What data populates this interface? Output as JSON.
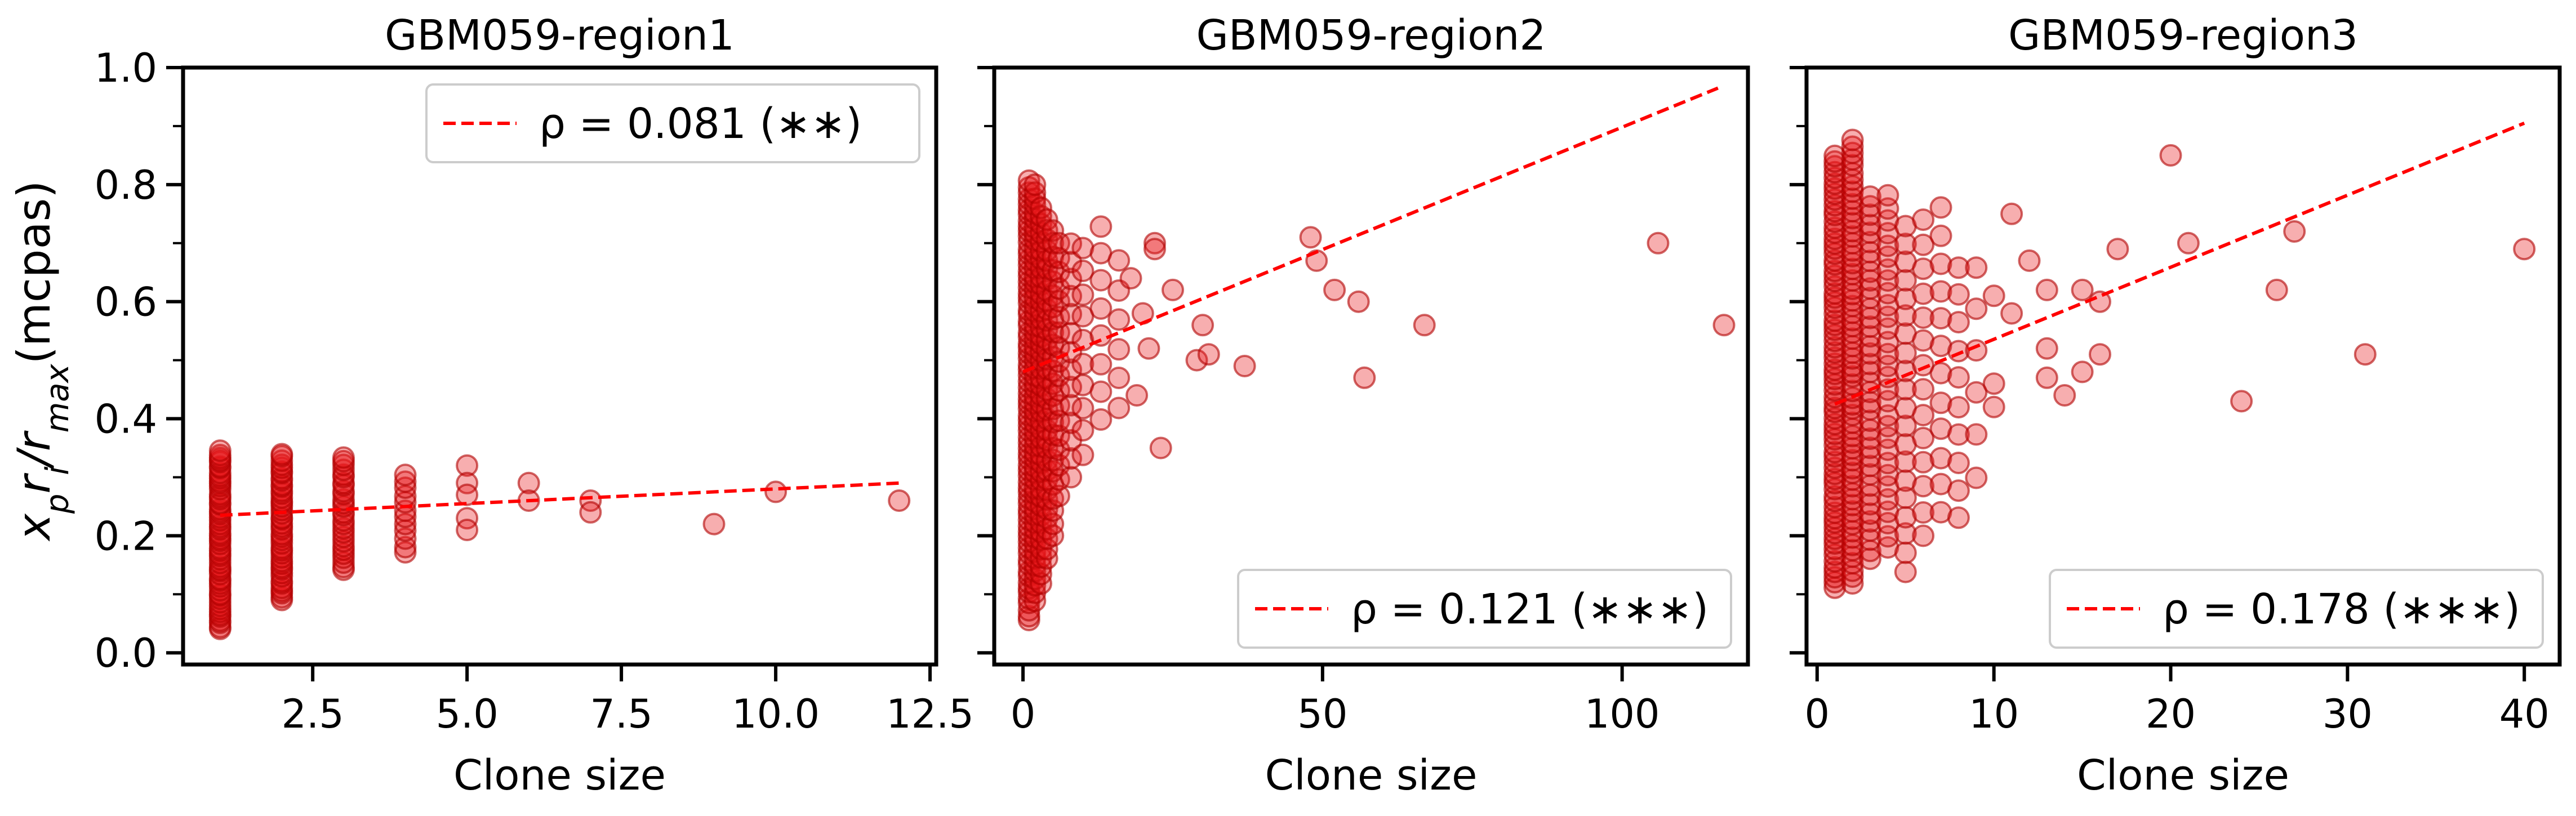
{
  "figure": {
    "ylabel_main": "x",
    "ylabel_sub_p": "p",
    "ylabel_r1": "r",
    "ylabel_sub_i": "i",
    "ylabel_slash": "/r",
    "ylabel_sub_max": "max",
    "ylabel_tail": "(mcpas)",
    "marker_color": "#e8161b",
    "trend_color": "#ff0000"
  },
  "chart_data": [
    {
      "type": "scatter",
      "title": "GBM059-region1",
      "xlabel": "Clone size",
      "ylabel": "x_p r_i / r_max (mcpas)",
      "xlim": [
        0.4,
        12.6
      ],
      "ylim": [
        -0.02,
        1.0
      ],
      "xticks": [
        2.5,
        5.0,
        7.5,
        10.0,
        12.5
      ],
      "xtick_labels": [
        "2.5",
        "5.0",
        "7.5",
        "10.0",
        "12.5"
      ],
      "yticks": [
        0.0,
        0.2,
        0.4,
        0.6,
        0.8,
        1.0
      ],
      "ytick_labels": [
        "0.0",
        "0.2",
        "0.4",
        "0.6",
        "0.8",
        "1.0"
      ],
      "legend": {
        "label": "ρ = 0.081 (∗∗)",
        "placement": "top-right"
      },
      "trend": {
        "x": [
          1,
          12
        ],
        "y": [
          0.235,
          0.29
        ]
      },
      "columns": [
        {
          "x": 1,
          "ymin": 0.04,
          "ymax": 0.345,
          "n": 60
        },
        {
          "x": 2,
          "ymin": 0.09,
          "ymax": 0.34,
          "n": 45
        },
        {
          "x": 3,
          "ymin": 0.14,
          "ymax": 0.335,
          "n": 28
        },
        {
          "x": 4,
          "ymin": 0.17,
          "ymax": 0.305,
          "n": 12
        }
      ],
      "points": [
        {
          "x": 5,
          "y": 0.32
        },
        {
          "x": 5,
          "y": 0.29
        },
        {
          "x": 5,
          "y": 0.27
        },
        {
          "x": 5,
          "y": 0.23
        },
        {
          "x": 5,
          "y": 0.21
        },
        {
          "x": 6,
          "y": 0.29
        },
        {
          "x": 6,
          "y": 0.26
        },
        {
          "x": 7,
          "y": 0.26
        },
        {
          "x": 7,
          "y": 0.24
        },
        {
          "x": 9,
          "y": 0.22
        },
        {
          "x": 10,
          "y": 0.275
        },
        {
          "x": 12,
          "y": 0.26
        }
      ]
    },
    {
      "type": "scatter",
      "title": "GBM059-region2",
      "xlabel": "Clone size",
      "ylabel": "",
      "xlim": [
        -4.8,
        121
      ],
      "ylim": [
        -0.02,
        1.0
      ],
      "xticks": [
        0,
        50,
        100
      ],
      "xtick_labels": [
        "0",
        "50",
        "100"
      ],
      "yticks": [
        0.0,
        0.2,
        0.4,
        0.6,
        0.8,
        1.0
      ],
      "ytick_labels": [],
      "legend": {
        "label": "ρ = 0.121 (∗∗∗)",
        "placement": "bottom-right"
      },
      "trend": {
        "x": [
          0,
          116
        ],
        "y": [
          0.48,
          0.965
        ]
      },
      "columns": [
        {
          "x": 1,
          "ymin": 0.055,
          "ymax": 0.805,
          "n": 80
        },
        {
          "x": 2,
          "ymin": 0.09,
          "ymax": 0.8,
          "n": 60
        },
        {
          "x": 3,
          "ymin": 0.12,
          "ymax": 0.76,
          "n": 45
        },
        {
          "x": 4,
          "ymin": 0.16,
          "ymax": 0.74,
          "n": 35
        },
        {
          "x": 5,
          "ymin": 0.2,
          "ymax": 0.72,
          "n": 25
        },
        {
          "x": 6,
          "ymin": 0.27,
          "ymax": 0.7,
          "n": 18
        },
        {
          "x": 8,
          "ymin": 0.3,
          "ymax": 0.7,
          "n": 14
        },
        {
          "x": 10,
          "ymin": 0.34,
          "ymax": 0.69,
          "n": 10
        },
        {
          "x": 13,
          "ymin": 0.4,
          "ymax": 0.73,
          "n": 8
        },
        {
          "x": 16,
          "ymin": 0.42,
          "ymax": 0.67,
          "n": 6
        }
      ],
      "points": [
        {
          "x": 18,
          "y": 0.64
        },
        {
          "x": 19,
          "y": 0.44
        },
        {
          "x": 20,
          "y": 0.58
        },
        {
          "x": 21,
          "y": 0.52
        },
        {
          "x": 22,
          "y": 0.7
        },
        {
          "x": 22,
          "y": 0.69
        },
        {
          "x": 23,
          "y": 0.35
        },
        {
          "x": 25,
          "y": 0.62
        },
        {
          "x": 29,
          "y": 0.5
        },
        {
          "x": 30,
          "y": 0.56
        },
        {
          "x": 31,
          "y": 0.51
        },
        {
          "x": 37,
          "y": 0.49
        },
        {
          "x": 48,
          "y": 0.71
        },
        {
          "x": 49,
          "y": 0.67
        },
        {
          "x": 52,
          "y": 0.62
        },
        {
          "x": 56,
          "y": 0.6
        },
        {
          "x": 57,
          "y": 0.47
        },
        {
          "x": 67,
          "y": 0.56
        },
        {
          "x": 106,
          "y": 0.7
        },
        {
          "x": 117,
          "y": 0.56
        }
      ]
    },
    {
      "type": "scatter",
      "title": "GBM059-region3",
      "xlabel": "Clone size",
      "ylabel": "",
      "xlim": [
        -0.6,
        42
      ],
      "ylim": [
        -0.02,
        1.0
      ],
      "xticks": [
        0,
        10,
        20,
        30,
        40
      ],
      "xtick_labels": [
        "0",
        "10",
        "20",
        "30",
        "40"
      ],
      "yticks": [
        0.0,
        0.2,
        0.4,
        0.6,
        0.8,
        1.0
      ],
      "ytick_labels": [],
      "legend": {
        "label": "ρ = 0.178 (∗∗∗)",
        "placement": "bottom-right"
      },
      "trend": {
        "x": [
          1,
          40
        ],
        "y": [
          0.425,
          0.905
        ]
      },
      "columns": [
        {
          "x": 1,
          "ymin": 0.11,
          "ymax": 0.85,
          "n": 80
        },
        {
          "x": 2,
          "ymin": 0.12,
          "ymax": 0.875,
          "n": 70
        },
        {
          "x": 3,
          "ymin": 0.16,
          "ymax": 0.78,
          "n": 40
        },
        {
          "x": 4,
          "ymin": 0.18,
          "ymax": 0.78,
          "n": 30
        },
        {
          "x": 5,
          "ymin": 0.14,
          "ymax": 0.73,
          "n": 20
        },
        {
          "x": 6,
          "ymin": 0.2,
          "ymax": 0.74,
          "n": 14
        },
        {
          "x": 7,
          "ymin": 0.24,
          "ymax": 0.76,
          "n": 12
        },
        {
          "x": 8,
          "ymin": 0.23,
          "ymax": 0.66,
          "n": 10
        },
        {
          "x": 9,
          "ymin": 0.3,
          "ymax": 0.66,
          "n": 6
        }
      ],
      "points": [
        {
          "x": 10,
          "y": 0.61
        },
        {
          "x": 10,
          "y": 0.46
        },
        {
          "x": 10,
          "y": 0.42
        },
        {
          "x": 11,
          "y": 0.75
        },
        {
          "x": 11,
          "y": 0.58
        },
        {
          "x": 12,
          "y": 0.67
        },
        {
          "x": 13,
          "y": 0.62
        },
        {
          "x": 13,
          "y": 0.52
        },
        {
          "x": 13,
          "y": 0.47
        },
        {
          "x": 14,
          "y": 0.44
        },
        {
          "x": 15,
          "y": 0.62
        },
        {
          "x": 15,
          "y": 0.48
        },
        {
          "x": 16,
          "y": 0.6
        },
        {
          "x": 16,
          "y": 0.51
        },
        {
          "x": 17,
          "y": 0.69
        },
        {
          "x": 20,
          "y": 0.85
        },
        {
          "x": 21,
          "y": 0.7
        },
        {
          "x": 24,
          "y": 0.43
        },
        {
          "x": 26,
          "y": 0.62
        },
        {
          "x": 27,
          "y": 0.72
        },
        {
          "x": 31,
          "y": 0.51
        },
        {
          "x": 40,
          "y": 0.69
        }
      ]
    }
  ]
}
